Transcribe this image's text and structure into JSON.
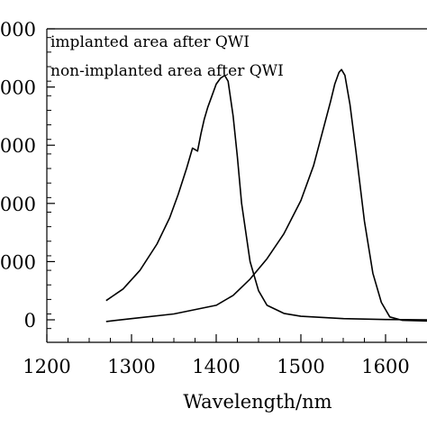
{
  "chart_data": {
    "type": "line",
    "title": "",
    "xlabel": "Wavelength/nm",
    "ylabel": "",
    "xlim": [
      1200,
      1650
    ],
    "ylim": [
      -400,
      5000
    ],
    "x_ticks": [
      1200,
      1300,
      1400,
      1500,
      1600
    ],
    "x_tick_labels": [
      "1200",
      "1300",
      "1400",
      "1500",
      "1600"
    ],
    "y_ticks": [
      0,
      1000,
      2000,
      3000,
      4000,
      5000
    ],
    "y_tick_labels": [
      "0",
      "000",
      "000",
      "000",
      "000",
      "000"
    ],
    "grid": false,
    "legend_entries": [
      "implanted area after QWI",
      "non-implanted area after QWI"
    ],
    "series": [
      {
        "name": "implanted area after QWI",
        "x": [
          1270,
          1290,
          1310,
          1330,
          1345,
          1355,
          1365,
          1372,
          1378,
          1382,
          1386,
          1390,
          1395,
          1400,
          1405,
          1410,
          1414,
          1420,
          1425,
          1430,
          1440,
          1450,
          1460,
          1480,
          1500,
          1550,
          1600,
          1650
        ],
        "y": [
          330,
          530,
          850,
          1300,
          1750,
          2150,
          2600,
          2950,
          2900,
          3200,
          3450,
          3650,
          3850,
          4050,
          4150,
          4200,
          4100,
          3500,
          2800,
          2000,
          1000,
          500,
          250,
          110,
          60,
          20,
          5,
          0
        ]
      },
      {
        "name": "non-implanted area after QWI",
        "x": [
          1270,
          1300,
          1350,
          1400,
          1420,
          1440,
          1460,
          1480,
          1500,
          1515,
          1525,
          1535,
          1540,
          1545,
          1548,
          1552,
          1558,
          1565,
          1575,
          1585,
          1595,
          1605,
          1620,
          1650
        ],
        "y": [
          -30,
          20,
          100,
          250,
          420,
          700,
          1050,
          1480,
          2050,
          2650,
          3200,
          3750,
          4050,
          4250,
          4300,
          4200,
          3700,
          2900,
          1700,
          800,
          300,
          50,
          -10,
          -20
        ]
      }
    ]
  }
}
